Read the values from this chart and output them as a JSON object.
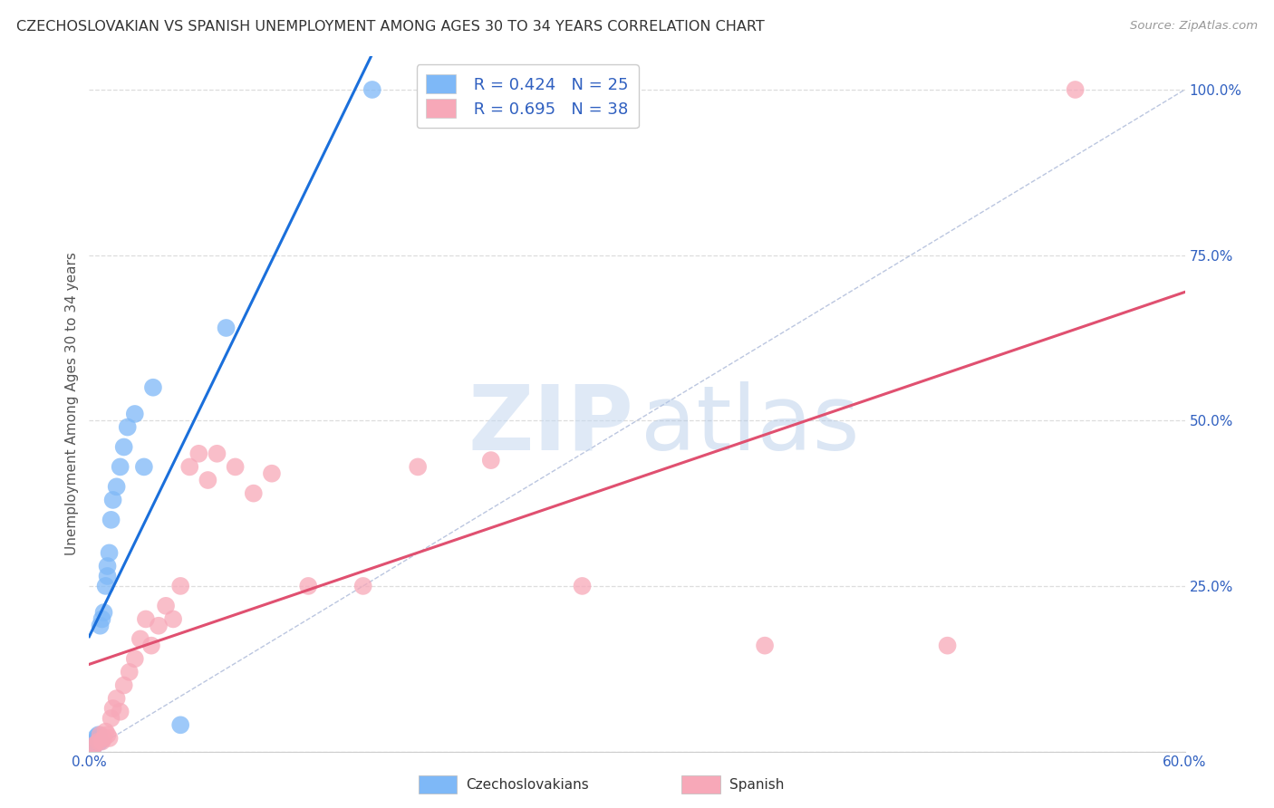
{
  "title": "CZECHOSLOVAKIAN VS SPANISH UNEMPLOYMENT AMONG AGES 30 TO 34 YEARS CORRELATION CHART",
  "source": "Source: ZipAtlas.com",
  "ylabel": "Unemployment Among Ages 30 to 34 years",
  "xlim": [
    0,
    0.6
  ],
  "ylim": [
    0,
    1.05
  ],
  "xticks": [
    0.0,
    0.1,
    0.2,
    0.3,
    0.4,
    0.5,
    0.6
  ],
  "yticks": [
    0.0,
    0.25,
    0.5,
    0.75,
    1.0
  ],
  "yticklabels": [
    "",
    "25.0%",
    "50.0%",
    "75.0%",
    "100.0%"
  ],
  "czech_R": 0.424,
  "czech_N": 25,
  "spanish_R": 0.695,
  "spanish_N": 38,
  "czech_color": "#7eb8f7",
  "spanish_color": "#f7a8b8",
  "czech_line_color": "#1a6fdb",
  "spanish_line_color": "#e05070",
  "background_color": "#ffffff",
  "grid_color": "#dddddd",
  "czech_x": [
    0.002,
    0.003,
    0.004,
    0.004,
    0.005,
    0.006,
    0.006,
    0.007,
    0.008,
    0.009,
    0.01,
    0.01,
    0.011,
    0.012,
    0.013,
    0.015,
    0.017,
    0.019,
    0.021,
    0.025,
    0.03,
    0.035,
    0.05,
    0.075,
    0.155
  ],
  "czech_y": [
    0.005,
    0.015,
    0.018,
    0.022,
    0.025,
    0.015,
    0.19,
    0.2,
    0.21,
    0.25,
    0.265,
    0.28,
    0.3,
    0.35,
    0.38,
    0.4,
    0.43,
    0.46,
    0.49,
    0.51,
    0.43,
    0.55,
    0.04,
    0.64,
    1.0
  ],
  "spanish_x": [
    0.002,
    0.003,
    0.005,
    0.006,
    0.007,
    0.008,
    0.009,
    0.01,
    0.011,
    0.012,
    0.013,
    0.015,
    0.017,
    0.019,
    0.022,
    0.025,
    0.028,
    0.031,
    0.034,
    0.038,
    0.042,
    0.046,
    0.05,
    0.055,
    0.06,
    0.065,
    0.07,
    0.08,
    0.09,
    0.1,
    0.12,
    0.15,
    0.18,
    0.22,
    0.27,
    0.37,
    0.47,
    0.54
  ],
  "spanish_y": [
    0.005,
    0.01,
    0.015,
    0.025,
    0.015,
    0.02,
    0.03,
    0.025,
    0.02,
    0.05,
    0.065,
    0.08,
    0.06,
    0.1,
    0.12,
    0.14,
    0.17,
    0.2,
    0.16,
    0.19,
    0.22,
    0.2,
    0.25,
    0.43,
    0.45,
    0.41,
    0.45,
    0.43,
    0.39,
    0.42,
    0.25,
    0.25,
    0.43,
    0.44,
    0.25,
    0.16,
    0.16,
    1.0
  ]
}
